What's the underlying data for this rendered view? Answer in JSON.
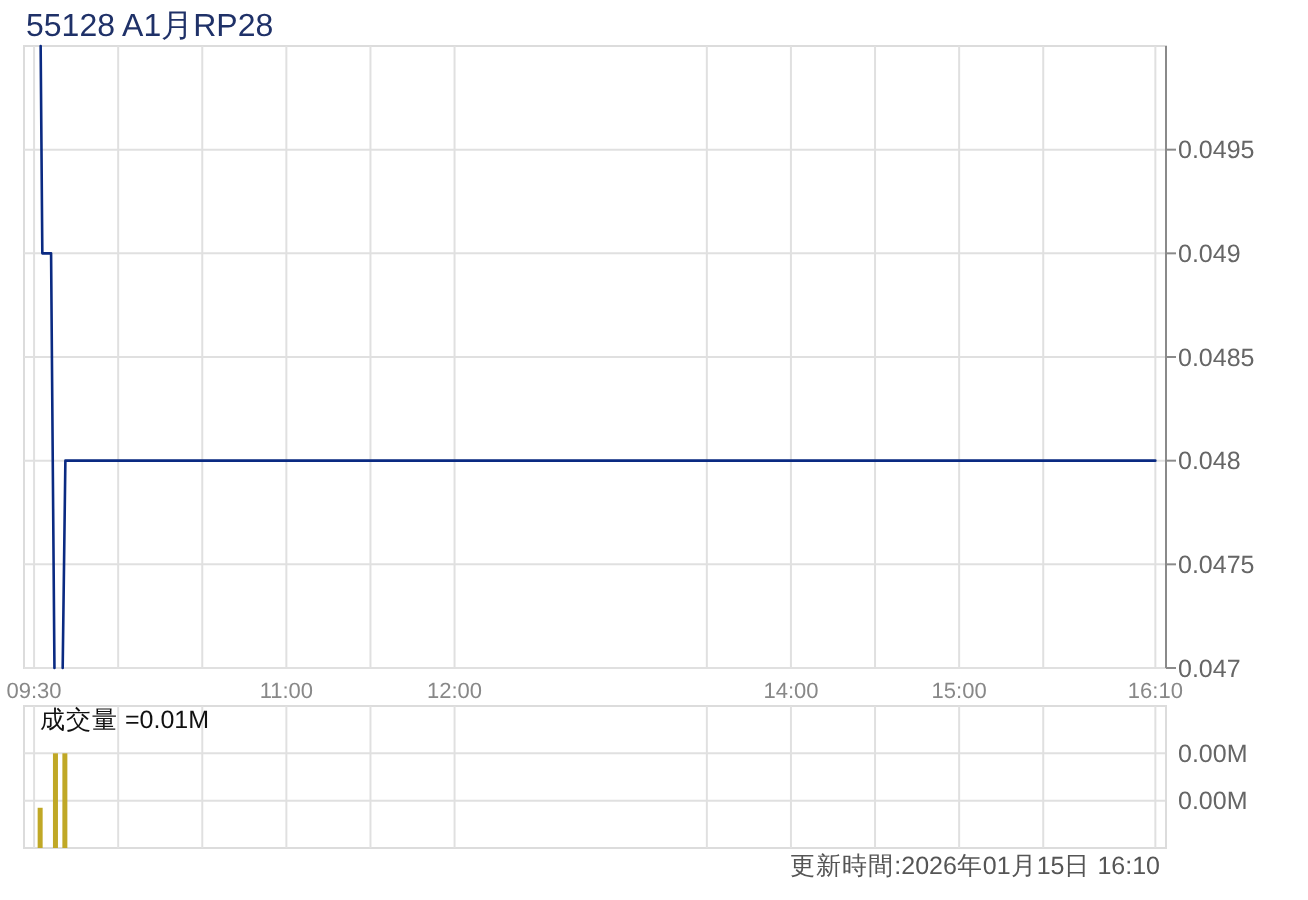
{
  "chart_data": [
    {
      "type": "line",
      "title": "55128 A1月RP28",
      "xlim": [
        9.44,
        16.23
      ],
      "xticks": [
        {
          "value": 9.5,
          "label": "09:30"
        },
        {
          "value": 10,
          "label": null
        },
        {
          "value": 10.5,
          "label": null
        },
        {
          "value": 11,
          "label": "11:00"
        },
        {
          "value": 11.5,
          "label": null
        },
        {
          "value": 12,
          "label": "12:00"
        },
        {
          "value": 13.5,
          "label": null
        },
        {
          "value": 14,
          "label": "14:00"
        },
        {
          "value": 14.5,
          "label": null
        },
        {
          "value": 15,
          "label": "15:00"
        },
        {
          "value": 15.5,
          "label": null
        },
        {
          "value": 16.1667,
          "label": "16:10"
        }
      ],
      "ylim": [
        0.047,
        0.05
      ],
      "yticks": [
        0.047,
        0.0475,
        0.048,
        0.0485,
        0.049,
        0.0495
      ],
      "grid": true,
      "x": [
        9.539,
        9.549,
        9.601,
        9.621,
        9.645,
        9.67,
        9.686,
        16.1667
      ],
      "series": [
        {
          "color": "#0a2a82",
          "values": [
            0.05,
            0.049,
            0.049,
            0.047,
            null,
            0.047,
            0.048,
            0.048
          ]
        }
      ]
    },
    {
      "type": "bar",
      "title": "成交量 =0.01M",
      "xlim": [
        9.44,
        16.23
      ],
      "xticks": [
        {
          "value": 9.5,
          "label": null
        },
        {
          "value": 10,
          "label": null
        },
        {
          "value": 10.5,
          "label": null
        },
        {
          "value": 11,
          "label": null
        },
        {
          "value": 11.5,
          "label": null
        },
        {
          "value": 12,
          "label": null
        },
        {
          "value": 13.5,
          "label": null
        },
        {
          "value": 14,
          "label": null
        },
        {
          "value": 14.5,
          "label": null
        },
        {
          "value": 15,
          "label": null
        },
        {
          "value": 15.5,
          "label": null
        },
        {
          "value": 16.1667,
          "label": null
        }
      ],
      "ylim": [
        0,
        0.006
      ],
      "yticks": [
        {
          "value": 0.002,
          "label": "0.00M"
        },
        {
          "value": 0.004,
          "label": "0.00M"
        }
      ],
      "grid": true,
      "tick_labels": "y",
      "x": [
        9.536,
        9.627,
        9.683
      ],
      "values": [
        0.0017,
        0.004,
        0.004
      ],
      "color": "#c0a826",
      "annotations": [
        "更新時間:2026年01月15日 16:10"
      ]
    }
  ]
}
